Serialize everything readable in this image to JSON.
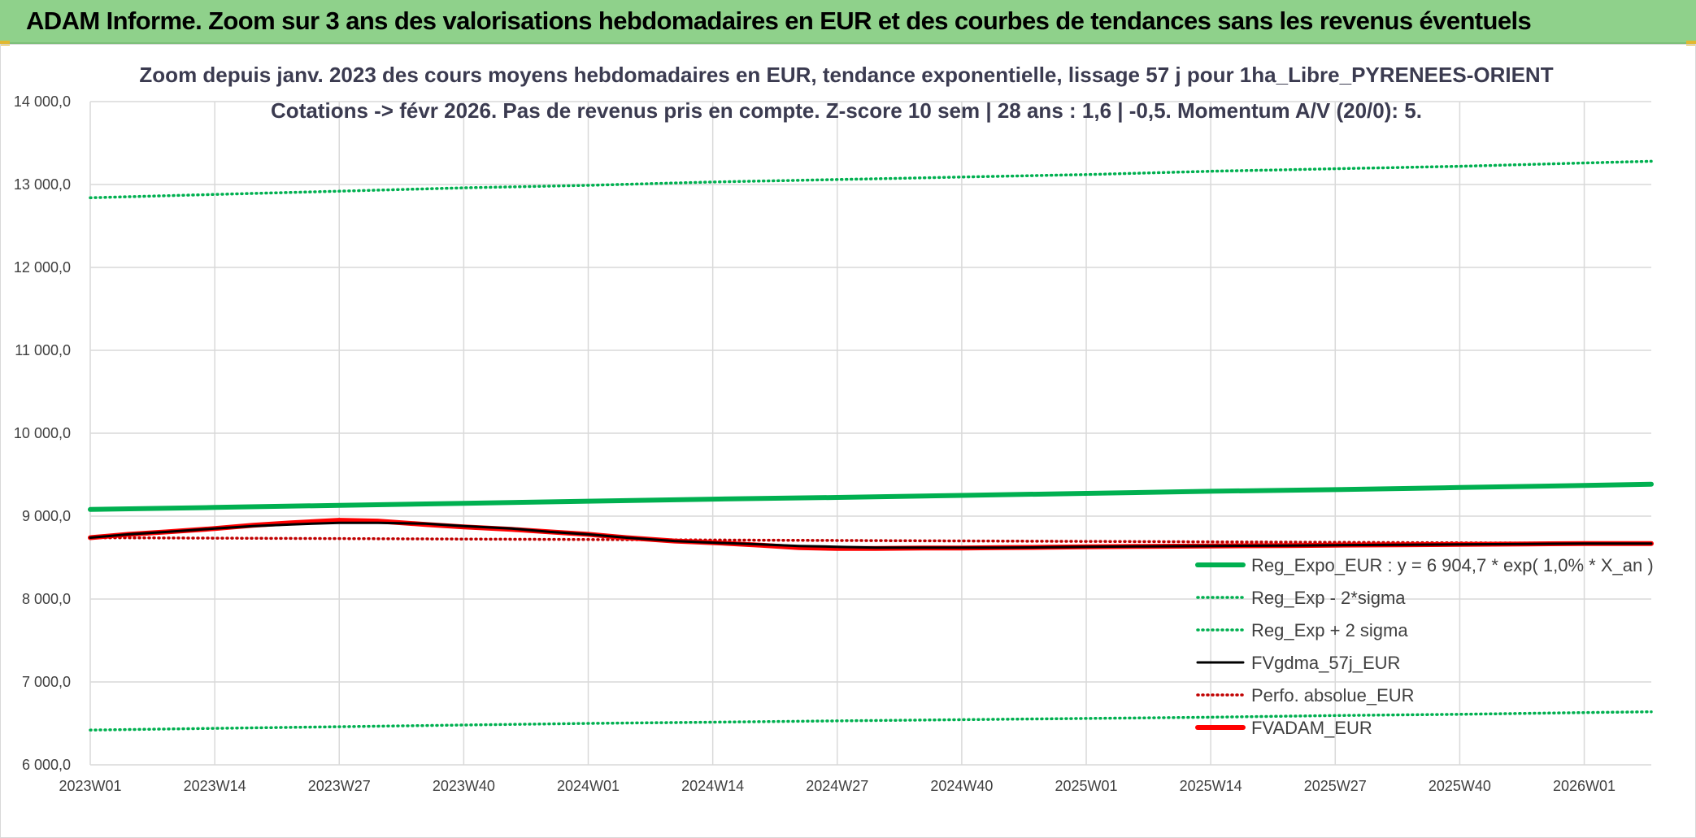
{
  "header": {
    "title": "ADAM Informe. Zoom sur 3 ans des valorisations hebdomadaires en EUR et des courbes de tendances sans les revenus éventuels"
  },
  "chart_data": {
    "type": "line",
    "title_lines": [
      "Zoom depuis janv. 2023 des cours moyens hebdomadaires en EUR, tendance exponentielle, lissage 57 j pour 1ha_Libre_PYRENEES-ORIENT",
      "Cotations -> févr 2026. Pas de revenus pris en compte. Z-score 10 sem | 28 ans : 1,6 | -0,5. Momentum A/V (20/0): 5."
    ],
    "xlabel": "",
    "ylabel": "",
    "ylim": [
      6000,
      14000
    ],
    "yticks": [
      6000,
      7000,
      8000,
      9000,
      10000,
      11000,
      12000,
      13000,
      14000
    ],
    "ytick_labels": [
      "6 000,0",
      "7 000,0",
      "8 000,0",
      "9 000,0",
      "10 000,0",
      "11 000,0",
      "12 000,0",
      "13 000,0",
      "14 000,0"
    ],
    "x_range_weeks": [
      0,
      163
    ],
    "xtick_labels": [
      "2023W01",
      "2023W14",
      "2023W27",
      "2023W40",
      "2024W01",
      "2024W14",
      "2024W27",
      "2024W40",
      "2025W01",
      "2025W14",
      "2025W27",
      "2025W40",
      "2026W01"
    ],
    "xtick_weeks": [
      0,
      13,
      26,
      39,
      52,
      65,
      78,
      91,
      104,
      117,
      130,
      143,
      156
    ],
    "grid": true,
    "legend_position": "bottom-right",
    "series": [
      {
        "name": "Reg_Expo_EUR : y = 6 904,7 * exp( 1,0% *  X_an )",
        "style": "solid-thick",
        "color": "#00b050",
        "x": [
          0,
          13,
          26,
          39,
          52,
          65,
          78,
          91,
          104,
          117,
          130,
          143,
          156,
          163
        ],
        "values": [
          9080,
          9105,
          9130,
          9155,
          9180,
          9205,
          9225,
          9250,
          9275,
          9300,
          9320,
          9345,
          9370,
          9385
        ]
      },
      {
        "name": "Reg_Exp - 2*sigma",
        "style": "dotted",
        "color": "#00b050",
        "x": [
          0,
          13,
          26,
          39,
          52,
          65,
          78,
          91,
          104,
          117,
          130,
          143,
          156,
          163
        ],
        "values": [
          6420,
          6440,
          6460,
          6480,
          6500,
          6515,
          6530,
          6545,
          6560,
          6575,
          6595,
          6610,
          6630,
          6640
        ]
      },
      {
        "name": "Reg_Exp + 2 sigma",
        "style": "dotted",
        "color": "#00b050",
        "x": [
          0,
          13,
          26,
          39,
          52,
          65,
          78,
          91,
          104,
          117,
          130,
          143,
          156,
          163
        ],
        "values": [
          12840,
          12880,
          12920,
          12960,
          12990,
          13030,
          13060,
          13090,
          13120,
          13160,
          13190,
          13220,
          13260,
          13280
        ]
      },
      {
        "name": "FVgdma_57j_EUR",
        "style": "solid",
        "color": "#000000",
        "x": [
          0,
          4,
          8,
          13,
          17,
          21,
          26,
          30,
          35,
          39,
          44,
          48,
          52,
          56,
          61,
          65,
          70,
          74,
          78,
          82,
          87,
          91,
          95,
          100,
          104,
          110,
          117,
          125,
          130,
          137,
          143,
          150,
          156,
          163
        ],
        "values": [
          8740,
          8780,
          8810,
          8850,
          8880,
          8900,
          8920,
          8920,
          8910,
          8880,
          8850,
          8810,
          8780,
          8740,
          8700,
          8680,
          8660,
          8640,
          8630,
          8620,
          8620,
          8620,
          8620,
          8625,
          8630,
          8635,
          8640,
          8645,
          8650,
          8655,
          8660,
          8665,
          8670,
          8670
        ]
      },
      {
        "name": "Perfo. absolue_EUR",
        "style": "dotted",
        "color": "#c00000",
        "x": [
          0,
          163
        ],
        "values": [
          8740,
          8670
        ]
      },
      {
        "name": "FVADAM_EUR",
        "style": "solid-thick",
        "color": "#ff0000",
        "x": [
          0,
          4,
          8,
          13,
          17,
          21,
          26,
          30,
          35,
          39,
          44,
          48,
          52,
          56,
          61,
          65,
          70,
          74,
          78,
          82,
          87,
          91,
          95,
          100,
          104,
          110,
          117,
          125,
          130,
          137,
          143,
          150,
          156,
          163
        ],
        "values": [
          8740,
          8780,
          8810,
          8850,
          8890,
          8920,
          8950,
          8940,
          8900,
          8870,
          8840,
          8810,
          8780,
          8740,
          8700,
          8680,
          8650,
          8620,
          8610,
          8610,
          8615,
          8615,
          8620,
          8625,
          8630,
          8635,
          8640,
          8645,
          8650,
          8655,
          8660,
          8665,
          8670,
          8670
        ]
      }
    ]
  }
}
